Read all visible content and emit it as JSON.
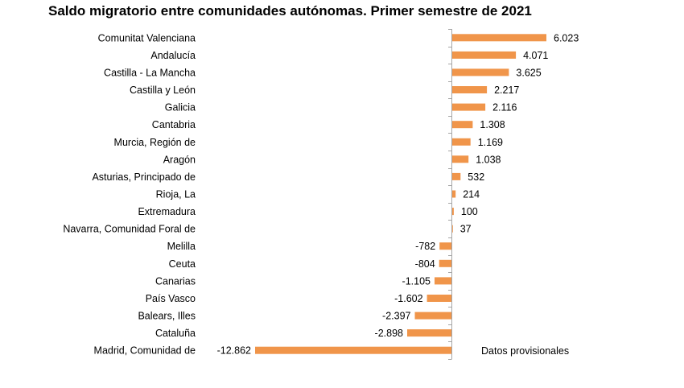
{
  "chart_data": {
    "type": "bar",
    "orientation": "horizontal",
    "title": "Saldo migratorio entre comunidades autónomas. Primer semestre de 2021",
    "note": "Datos provisionales",
    "bar_color": "#F0954A",
    "axis_color": "#A6A6A6",
    "xlim": [
      -12862,
      6023
    ],
    "grid": false,
    "categories": [
      "Comunitat Valenciana",
      "Andalucía",
      "Castilla - La Mancha",
      "Castilla y León",
      "Galicia",
      "Cantabria",
      "Murcia, Región de",
      "Aragón",
      "Asturias, Principado de",
      "Rioja, La",
      "Extremadura",
      "Navarra, Comunidad Foral de",
      "Melilla",
      "Ceuta",
      "Canarias",
      "País Vasco",
      "Balears, Illes",
      "Cataluña",
      "Madrid, Comunidad de"
    ],
    "values": [
      6023,
      4071,
      3625,
      2217,
      2116,
      1308,
      1169,
      1038,
      532,
      214,
      100,
      37,
      -782,
      -804,
      -1105,
      -1602,
      -2397,
      -2898,
      -12862
    ],
    "value_labels": [
      "6.023",
      "4.071",
      "3.625",
      "2.217",
      "2.116",
      "1.308",
      "1.169",
      "1.038",
      "532",
      "214",
      "100",
      "37",
      "-782",
      "-804",
      "-1.105",
      "-1.602",
      "-2.397",
      "-2.898",
      "-12.862"
    ]
  }
}
